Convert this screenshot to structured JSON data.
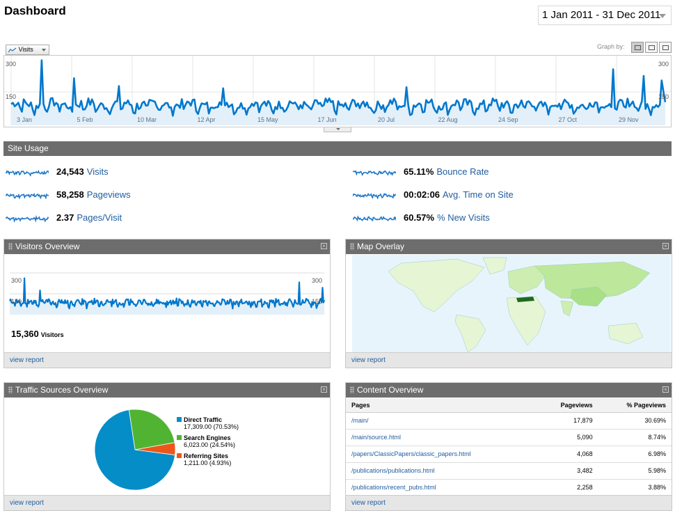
{
  "page": {
    "title": "Dashboard"
  },
  "date_range": {
    "label": "1 Jan 2011 - 31 Dec 2011"
  },
  "main_graph": {
    "metric_selector": "Visits",
    "graph_by_label": "Graph by:",
    "y_top_left": "300",
    "y_mid_left": "150",
    "y_top_right": "300",
    "y_mid_right": "150",
    "x_labels": [
      "3 Jan",
      "5 Feb",
      "10 Mar",
      "12 Apr",
      "15 May",
      "17 Jun",
      "20 Jul",
      "22 Aug",
      "24 Sep",
      "27 Oct",
      "29 Nov"
    ]
  },
  "chart_data": {
    "type": "line",
    "series": [
      {
        "name": "Visits",
        "color": "#1f78c7"
      }
    ],
    "ylim": [
      0,
      300
    ],
    "x": [
      "3 Jan",
      "5 Feb",
      "10 Mar",
      "12 Apr",
      "15 May",
      "17 Jun",
      "20 Jul",
      "22 Aug",
      "24 Sep",
      "27 Oct",
      "29 Nov"
    ]
  },
  "site_usage": {
    "title": "Site Usage",
    "left": [
      {
        "value": "24,543",
        "label": "Visits"
      },
      {
        "value": "58,258",
        "label": "Pageviews"
      },
      {
        "value": "2.37",
        "label": "Pages/Visit"
      }
    ],
    "right": [
      {
        "value": "65.11%",
        "label": "Bounce Rate"
      },
      {
        "value": "00:02:06",
        "label": "Avg. Time on Site"
      },
      {
        "value": "60.57%",
        "label": "% New Visits"
      }
    ]
  },
  "visitors_overview": {
    "title": "Visitors Overview",
    "y_top_left": "300",
    "y_mid_left": "150",
    "y_top_right": "300",
    "y_mid_right": "150",
    "total": "15,360",
    "total_label": "Visitors",
    "link": "view report"
  },
  "map_overlay": {
    "title": "Map Overlay",
    "link": "view report"
  },
  "traffic_sources": {
    "title": "Traffic Sources Overview",
    "link": "view report",
    "slices": [
      {
        "name": "Direct Traffic",
        "detail": "17,309.00 (70.53%)",
        "percent": 70.53,
        "color": "#058dc7"
      },
      {
        "name": "Search Engines",
        "detail": "6,023.00 (24.54%)",
        "percent": 24.54,
        "color": "#50b432"
      },
      {
        "name": "Referring Sites",
        "detail": "1,211.00 (4.93%)",
        "percent": 4.93,
        "color": "#ed561b"
      }
    ]
  },
  "content_overview": {
    "title": "Content Overview",
    "link": "view report",
    "headers": [
      "Pages",
      "Pageviews",
      "% Pageviews"
    ],
    "rows": [
      [
        "/main/",
        "17,879",
        "30.69%"
      ],
      [
        "/main/source.html",
        "5,090",
        "8.74%"
      ],
      [
        "/papers/ClassicPapers/classic_papers.html",
        "4,068",
        "6.98%"
      ],
      [
        "/publications/publications.html",
        "3,482",
        "5.98%"
      ],
      [
        "/publications/recent_pubs.html",
        "2,258",
        "3.88%"
      ]
    ]
  }
}
